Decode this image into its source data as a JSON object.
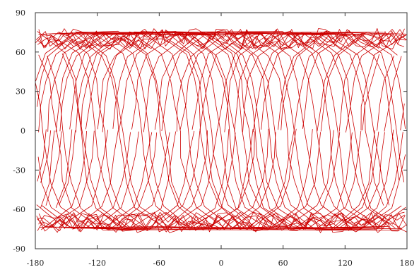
{
  "chart_data": {
    "type": "line",
    "title": "",
    "xlabel": "",
    "ylabel": "",
    "xlim": [
      -180,
      180
    ],
    "ylim": [
      -90,
      90
    ],
    "grid": false,
    "legend": "none",
    "x_ticks": [
      -180,
      -120,
      -60,
      0,
      60,
      120,
      180
    ],
    "x_tick_labels": [
      "-180",
      "-120",
      "-60",
      "0",
      "60",
      "120",
      "180"
    ],
    "y_ticks": [
      -90,
      -60,
      -30,
      0,
      30,
      60,
      90
    ],
    "y_tick_labels": [
      "-90",
      "-60",
      "-30",
      "0",
      "30",
      "60",
      "90"
    ],
    "series": [
      {
        "color": "#cc0000",
        "description_of_shape": "dense ground-track pattern of a satellite orbit with inclination about 78 degrees, latitude oscillating between about -78 and 78",
        "inclination_deg": 78,
        "lat_range": [
          -78,
          78
        ],
        "orbits": 40
      }
    ]
  }
}
